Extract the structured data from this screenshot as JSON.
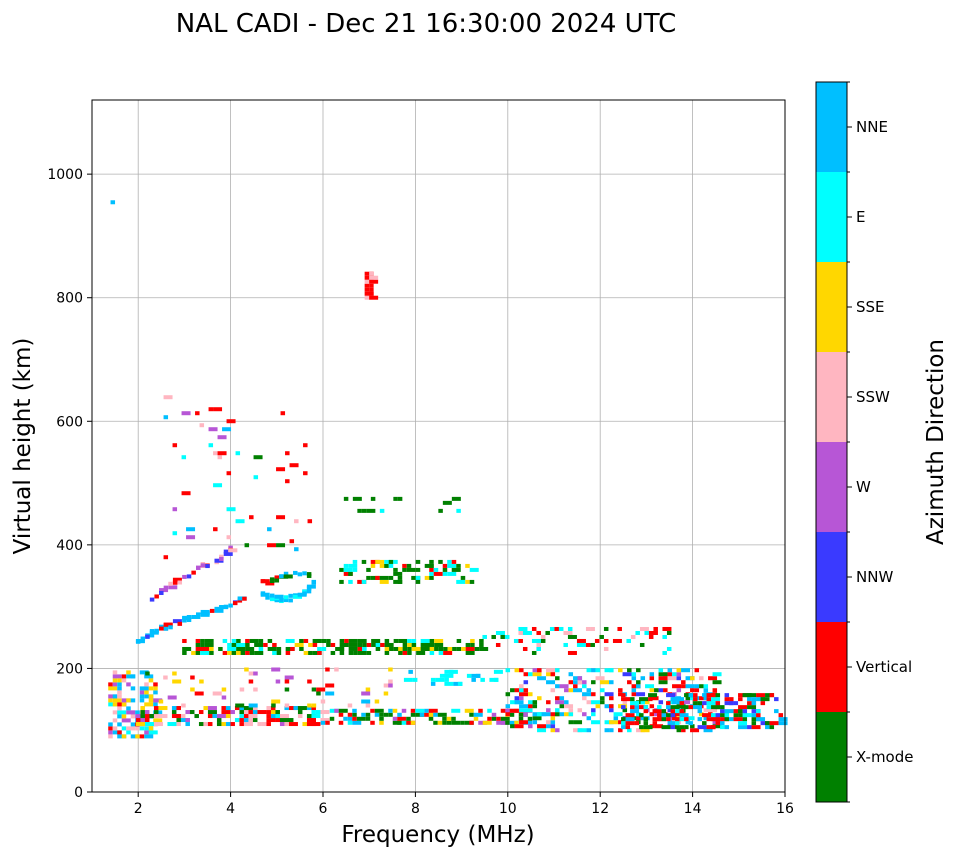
{
  "chart_data": {
    "type": "scatter",
    "title": "NAL CADI - Dec 21 16:30:00 2024 UTC",
    "xlabel": "Frequency (MHz)",
    "ylabel": "Virtual height (km)",
    "xlim": [
      1,
      16
    ],
    "ylim": [
      0,
      1120
    ],
    "x_ticks": [
      2,
      4,
      6,
      8,
      10,
      12,
      14,
      16
    ],
    "y_ticks": [
      0,
      200,
      400,
      600,
      800,
      1000
    ],
    "grid": true,
    "colorbar": {
      "label": "Azimuth Direction",
      "categories": [
        {
          "name": "X-mode",
          "color": "#008000"
        },
        {
          "name": "Vertical",
          "color": "#ff0000"
        },
        {
          "name": "NNW",
          "color": "#3a3aff"
        },
        {
          "name": "W",
          "color": "#b756d6"
        },
        {
          "name": "SSW",
          "color": "#ffb6c1"
        },
        {
          "name": "SSE",
          "color": "#ffd700"
        },
        {
          "name": "E",
          "color": "#00ffff"
        },
        {
          "name": "NNE",
          "color": "#00bfff"
        }
      ]
    },
    "bands": [
      {
        "name": "isolated-high",
        "x_range": [
          1.45,
          1.55
        ],
        "y_range": [
          825,
          955
        ],
        "density": 0.12,
        "weights": {
          "NNE": 1,
          "E": 1
        }
      },
      {
        "name": "spike-800",
        "x_range": [
          6.95,
          7.05
        ],
        "y_range": [
          800,
          840
        ],
        "density": 0.9,
        "weights": {
          "Vertical": 3,
          "SSW": 1
        }
      },
      {
        "name": "low-layer-cluster",
        "x_range": [
          1.4,
          2.4
        ],
        "y_range": [
          90,
          200
        ],
        "density": 0.55,
        "weights": {
          "NNE": 3,
          "SSE": 2,
          "SSW": 2,
          "Vertical": 1,
          "W": 1,
          "E": 1
        }
      },
      {
        "name": "e-layer-low-freq",
        "x_range": [
          2.0,
          6.0
        ],
        "y_range": [
          110,
          140
        ],
        "density": 0.6,
        "weights": {
          "Vertical": 3,
          "X-mode": 2,
          "SSW": 2,
          "NNE": 1,
          "SSE": 1,
          "E": 1,
          "W": 1
        }
      },
      {
        "name": "e-layer-mid",
        "x_range": [
          6.0,
          10.5
        ],
        "y_range": [
          112,
          135
        ],
        "density": 0.5,
        "weights": {
          "X-mode": 3,
          "Vertical": 2,
          "NNE": 1,
          "E": 1,
          "W": 1,
          "SSE": 1
        }
      },
      {
        "name": "e-layer-diffuse",
        "x_range": [
          2.2,
          7.5
        ],
        "y_range": [
          140,
          200
        ],
        "density": 0.1,
        "weights": {
          "SSW": 2,
          "Vertical": 2,
          "NNE": 1,
          "SSE": 1,
          "W": 1,
          "X-mode": 1
        }
      },
      {
        "name": "band-190",
        "x_range": [
          7.8,
          9.8
        ],
        "y_range": [
          175,
          195
        ],
        "density": 0.35,
        "weights": {
          "E": 3,
          "NNE": 1
        }
      },
      {
        "name": "spread-high-freq",
        "x_range": [
          10.0,
          14.5
        ],
        "y_range": [
          100,
          200
        ],
        "density": 0.35,
        "weights": {
          "Vertical": 3,
          "NNE": 3,
          "X-mode": 2,
          "E": 2,
          "NNW": 1,
          "W": 1,
          "SSW": 1,
          "SSE": 1
        }
      },
      {
        "name": "band-130-high",
        "x_range": [
          12.5,
          16.0
        ],
        "y_range": [
          105,
          160
        ],
        "density": 0.5,
        "weights": {
          "X-mode": 3,
          "Vertical": 3,
          "NNE": 2,
          "NNW": 1,
          "E": 1
        }
      },
      {
        "name": "f-layer-235",
        "x_range": [
          3.0,
          9.5
        ],
        "y_range": [
          225,
          250
        ],
        "density": 0.5,
        "weights": {
          "X-mode": 5,
          "Vertical": 1,
          "SSE": 1,
          "E": 1
        }
      },
      {
        "name": "f-layer-240-high",
        "x_range": [
          9.5,
          13.5
        ],
        "y_range": [
          225,
          265
        ],
        "density": 0.15,
        "weights": {
          "X-mode": 2,
          "Vertical": 2,
          "E": 2,
          "SSW": 1
        }
      },
      {
        "name": "f-layer-350",
        "x_range": [
          6.4,
          9.3
        ],
        "y_range": [
          340,
          375
        ],
        "density": 0.35,
        "weights": {
          "X-mode": 4,
          "E": 2,
          "SSE": 1,
          "Vertical": 1
        }
      },
      {
        "name": "f-layer-460",
        "x_range": [
          6.5,
          9.0
        ],
        "y_range": [
          455,
          475
        ],
        "density": 0.12,
        "weights": {
          "X-mode": 3,
          "E": 1
        }
      },
      {
        "name": "scatter-mid-high",
        "x_range": [
          2.5,
          6.0
        ],
        "y_range": [
          380,
          640
        ],
        "density": 0.03,
        "weights": {
          "Vertical": 2,
          "W": 1,
          "NNE": 1,
          "X-mode": 1,
          "SSW": 1,
          "E": 1
        }
      }
    ],
    "traces": [
      {
        "name": "o-trace",
        "points": [
          [
            2.0,
            245
          ],
          [
            2.5,
            265
          ],
          [
            3.0,
            278
          ],
          [
            3.5,
            290
          ],
          [
            4.0,
            305
          ],
          [
            4.4,
            318
          ]
        ],
        "spread": 8,
        "weights": {
          "NNE": 4,
          "Vertical": 2,
          "NNW": 1
        }
      },
      {
        "name": "upper-trace",
        "points": [
          [
            2.3,
            315
          ],
          [
            2.8,
            340
          ],
          [
            3.3,
            360
          ],
          [
            3.8,
            380
          ],
          [
            4.1,
            398
          ]
        ],
        "spread": 10,
        "weights": {
          "W": 2,
          "NNW": 2,
          "Vertical": 2,
          "SSW": 1
        }
      },
      {
        "name": "x-trace",
        "points": [
          [
            4.7,
            320
          ],
          [
            5.1,
            310
          ],
          [
            5.5,
            318
          ],
          [
            5.7,
            332
          ],
          [
            5.9,
            348
          ]
        ],
        "spread": 8,
        "weights": {
          "NNE": 4,
          "E": 1,
          "X-mode": 1
        }
      },
      {
        "name": "x-trace-2",
        "points": [
          [
            4.6,
            335
          ],
          [
            5.0,
            345
          ],
          [
            5.4,
            355
          ],
          [
            5.8,
            350
          ]
        ],
        "spread": 8,
        "weights": {
          "X-mode": 2,
          "Vertical": 1,
          "NNE": 1
        }
      }
    ]
  }
}
